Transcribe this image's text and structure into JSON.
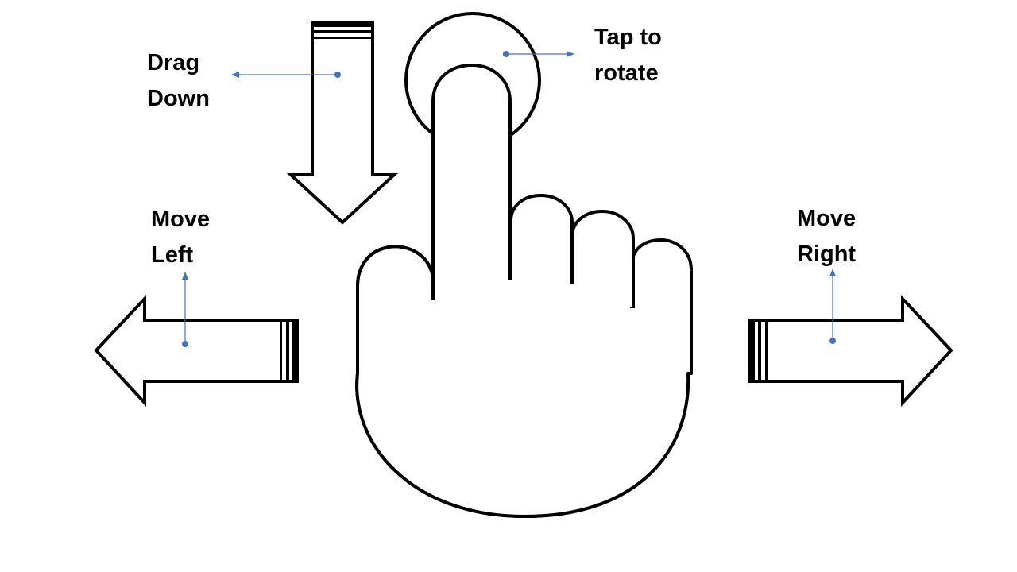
{
  "labels": {
    "drag_down": {
      "line1": "Drag",
      "line2": "Down"
    },
    "tap_rotate": {
      "line1": "Tap to",
      "line2": "rotate"
    },
    "move_left": {
      "line1": "Move",
      "line2": "Left"
    },
    "move_right": {
      "line1": "Move",
      "line2": "Right"
    }
  },
  "icons": {
    "hand": "pointing-hand-icon",
    "tap": "tap-circle-icon",
    "down": "arrow-down-icon",
    "left": "arrow-left-icon",
    "right": "arrow-right-icon"
  },
  "colors": {
    "outline": "#000000",
    "fill": "#ffffff",
    "connector": "#4472c4"
  }
}
